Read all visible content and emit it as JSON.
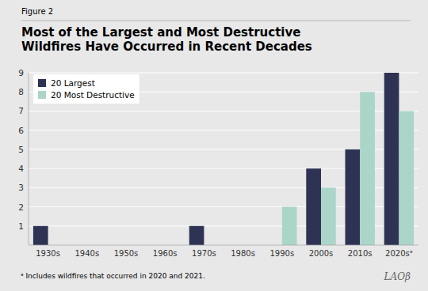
{
  "chart_data": {
    "type": "bar",
    "title": [
      "Most of the Largest and Most Destructive",
      "Wildfires Have Occurred in Recent Decades"
    ],
    "annotations": [
      "Figure 2",
      "ᵃ Includes wildfires that occurred in 2020 and 2021.",
      "LAOβ"
    ],
    "categories": [
      "1930s",
      "1940s",
      "1950s",
      "1960s",
      "1970s",
      "1980s",
      "1990s",
      "2000s",
      "2010s",
      "2020sᵃ"
    ],
    "series": [
      {
        "name": "20 Largest",
        "color": "#2e3354",
        "values": [
          1,
          0,
          0,
          0,
          1,
          0,
          0,
          4,
          5,
          9
        ]
      },
      {
        "name": "20 Most Destructive",
        "color": "#aad5c8",
        "values": [
          0,
          0,
          0,
          0,
          0,
          0,
          2,
          3,
          8,
          7
        ]
      }
    ],
    "ylim": [
      0,
      9
    ],
    "yticks": [
      1,
      2,
      3,
      4,
      5,
      6,
      7,
      8,
      9
    ],
    "grid": true,
    "legend": "upper left"
  }
}
